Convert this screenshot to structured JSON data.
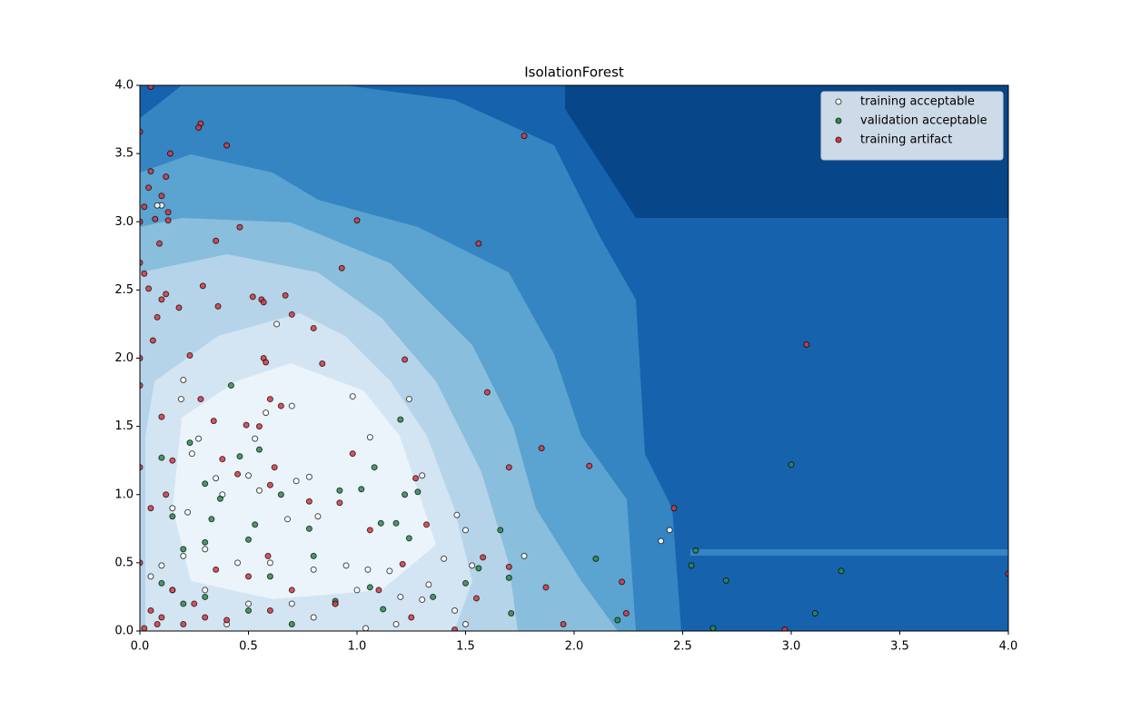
{
  "chart_data": {
    "type": "scatter",
    "title": "IsolationForest",
    "xlim": [
      0,
      4
    ],
    "ylim": [
      0,
      4
    ],
    "xticks": [
      {
        "value": 0,
        "label": "0.0"
      },
      {
        "value": 0.5,
        "label": "0.5"
      },
      {
        "value": 1,
        "label": "1.0"
      },
      {
        "value": 1.5,
        "label": "1.5"
      },
      {
        "value": 2,
        "label": "2.0"
      },
      {
        "value": 2.5,
        "label": "2.5"
      },
      {
        "value": 3,
        "label": "3.0"
      },
      {
        "value": 3.5,
        "label": "3.5"
      },
      {
        "value": 4,
        "label": "4.0"
      }
    ],
    "yticks": [
      {
        "value": 0,
        "label": "0.0"
      },
      {
        "value": 0.5,
        "label": "0.5"
      },
      {
        "value": 1,
        "label": "1.0"
      },
      {
        "value": 1.5,
        "label": "1.5"
      },
      {
        "value": 2,
        "label": "2.0"
      },
      {
        "value": 2.5,
        "label": "2.5"
      },
      {
        "value": 3,
        "label": "3.0"
      },
      {
        "value": 3.5,
        "label": "3.5"
      },
      {
        "value": 4,
        "label": "4.0"
      }
    ],
    "legend": "upper right",
    "series": [
      {
        "name": "training acceptable",
        "color": "#ffffff",
        "x": [
          0.2,
          0.63,
          0.7,
          0.98,
          1.24,
          1.06,
          0.19,
          0.27,
          0.53,
          0.58,
          0.24,
          0.35,
          0.5,
          0.72,
          0.78,
          1.3,
          0.38,
          0.55,
          0.15,
          0.22,
          0.68,
          0.82,
          1.46,
          1.5,
          2.44,
          2.4,
          1.77,
          1.53,
          1.4,
          0.1,
          0.2,
          0.3,
          0.45,
          0.6,
          0.8,
          0.95,
          1.05,
          1.15,
          1.0,
          0.9,
          0.7,
          0.5,
          0.3,
          0.15,
          1.2,
          1.3,
          1.33,
          1.45,
          1.5,
          0.1,
          0.08,
          0.05,
          0.4,
          0.8,
          1.04,
          1.18
        ],
        "values": [
          1.84,
          2.25,
          1.65,
          1.72,
          1.7,
          1.42,
          1.7,
          1.41,
          1.41,
          1.6,
          1.3,
          1.12,
          1.14,
          1.1,
          1.13,
          1.14,
          1.0,
          1.03,
          0.9,
          0.87,
          0.82,
          0.84,
          0.85,
          0.74,
          0.74,
          0.66,
          0.55,
          0.48,
          0.53,
          0.48,
          0.55,
          0.6,
          0.5,
          0.5,
          0.45,
          0.48,
          0.45,
          0.44,
          0.3,
          0.2,
          0.2,
          0.2,
          0.3,
          0.3,
          0.25,
          0.23,
          0.34,
          0.15,
          0.05,
          3.12,
          3.12,
          0.4,
          0.05,
          0.1,
          0.02,
          0.05
        ]
      },
      {
        "name": "validation acceptable",
        "color": "#2e8b46",
        "x": [
          0.42,
          0.23,
          0.46,
          0.55,
          0.1,
          1.08,
          1.2,
          0.3,
          0.37,
          0.65,
          0.92,
          1.02,
          1.22,
          1.28,
          0.53,
          0.78,
          0.33,
          0.15,
          1.11,
          1.18,
          1.66,
          1.24,
          2.1,
          1.7,
          1.56,
          1.5,
          1.06,
          1.12,
          1.35,
          2.56,
          2.54,
          2.7,
          3.23,
          3.0,
          3.11,
          2.64,
          2.2,
          1.71,
          0.5,
          0.3,
          0.2,
          0.6,
          0.8,
          0.9,
          0.5,
          0.7,
          0.3,
          0.2,
          0.1
        ],
        "values": [
          1.8,
          1.38,
          1.28,
          1.33,
          1.27,
          1.2,
          1.55,
          1.08,
          0.97,
          1.0,
          1.03,
          1.04,
          1.0,
          1.02,
          0.78,
          0.75,
          0.82,
          0.84,
          0.79,
          0.79,
          0.74,
          0.68,
          0.53,
          0.39,
          0.46,
          0.35,
          0.32,
          0.16,
          0.25,
          0.59,
          0.48,
          0.37,
          0.44,
          1.22,
          0.13,
          0.02,
          0.08,
          0.13,
          0.67,
          0.65,
          0.6,
          0.4,
          0.55,
          0.22,
          0.15,
          0.05,
          0.25,
          0.2,
          0.35
        ]
      },
      {
        "name": "training artifact",
        "color": "#d9363e",
        "x": [
          0.05,
          0.28,
          0.27,
          0.4,
          1.77,
          0.14,
          0.05,
          0.12,
          0.04,
          0.1,
          0.02,
          0.13,
          0.07,
          0.13,
          1.0,
          0.46,
          0.35,
          0.09,
          1.56,
          0.93,
          0.02,
          0.29,
          0.04,
          0.12,
          0.52,
          0.67,
          0.56,
          0.57,
          0.1,
          0.36,
          0.18,
          0.7,
          0.08,
          0.8,
          0.06,
          0.23,
          0.57,
          1.22,
          0.58,
          0.84,
          3.07,
          1.6,
          0.28,
          0.6,
          0.65,
          0.1,
          0.34,
          0.49,
          0.55,
          0.98,
          1.85,
          0.38,
          0.15,
          2.07,
          1.7,
          0.62,
          0.45,
          1.27,
          0.6,
          0.12,
          0.92,
          0.78,
          0.05,
          0.59,
          2.46,
          1.06,
          1.32,
          1.58,
          1.21,
          1.7,
          1.87,
          2.22,
          1.55,
          2.24,
          1.95,
          4.0,
          2.97,
          0.1,
          0.2,
          0.05,
          0.3,
          0.4,
          0.15,
          0.25,
          0.02,
          0.08,
          0.6,
          0.7,
          0.9,
          1.1,
          1.25,
          1.45,
          0.5,
          0.35,
          0.0,
          0.0,
          0.0,
          0.0,
          0.0,
          0.0,
          0.0
        ],
        "values": [
          3.99,
          3.72,
          3.69,
          3.56,
          3.63,
          3.5,
          3.37,
          3.33,
          3.25,
          3.19,
          3.11,
          3.07,
          3.02,
          3.01,
          3.01,
          2.96,
          2.86,
          2.84,
          2.84,
          2.66,
          2.62,
          2.53,
          2.51,
          2.47,
          2.45,
          2.46,
          2.43,
          2.41,
          2.43,
          2.38,
          2.37,
          2.32,
          2.3,
          2.22,
          2.13,
          2.02,
          2.0,
          1.99,
          1.97,
          1.96,
          2.1,
          1.75,
          1.7,
          1.7,
          1.65,
          1.57,
          1.54,
          1.51,
          1.5,
          1.3,
          1.34,
          1.26,
          1.25,
          1.21,
          1.2,
          1.2,
          1.15,
          1.12,
          1.07,
          1.0,
          0.94,
          0.95,
          0.9,
          0.55,
          0.9,
          0.74,
          0.78,
          0.54,
          0.49,
          0.47,
          0.32,
          0.36,
          0.24,
          0.13,
          0.05,
          0.42,
          0.01,
          0.1,
          0.05,
          0.15,
          0.1,
          0.08,
          0.3,
          0.2,
          0.02,
          0.05,
          0.15,
          0.3,
          0.2,
          0.3,
          0.1,
          0.01,
          0.4,
          0.45,
          1.8,
          2.0,
          2.7,
          3.0,
          3.66,
          1.2,
          0.5
        ]
      }
    ]
  }
}
